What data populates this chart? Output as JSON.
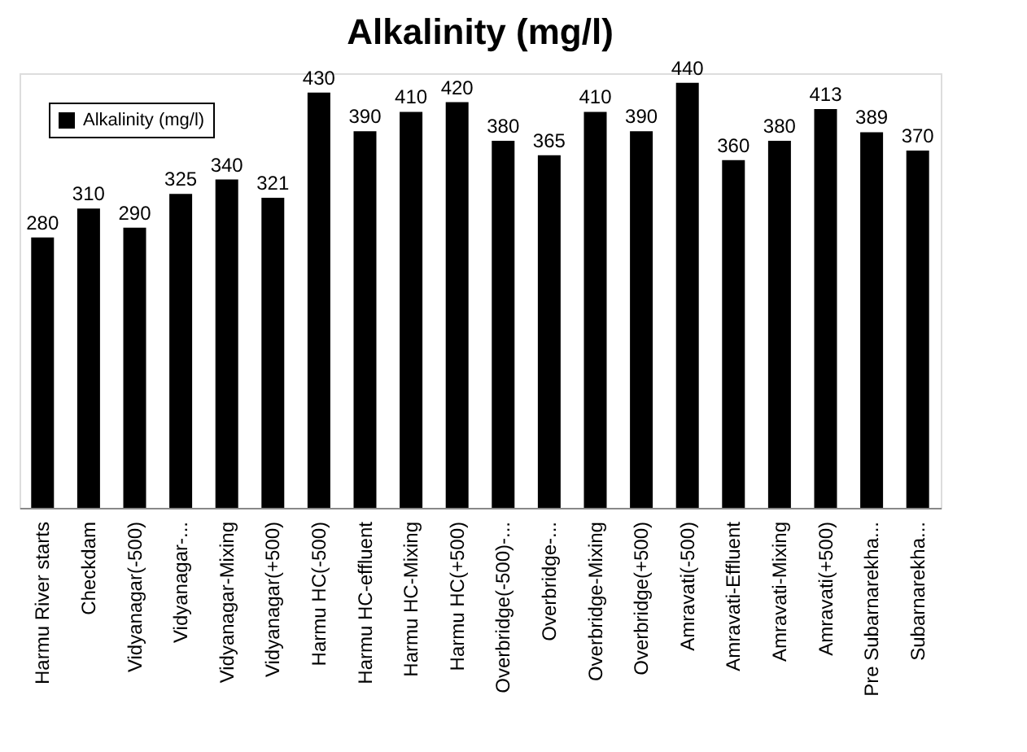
{
  "chart_data": {
    "type": "bar",
    "title": "Alkalinity (mg/l)",
    "categories": [
      "Harmu River starts",
      "Checkdam",
      "Vidyanagar(-500)",
      "Vidyanagar-...",
      "Vidyanagar-Mixing",
      "Vidyanagar(+500)",
      "Harmu HC(-500)",
      "Harmu HC-effluent",
      "Harmu HC-Mixing",
      "Harmu HC(+500)",
      "Overbridge(-500)-...",
      "Overbridge-...",
      "Overbridge-Mixing",
      "Overbridge(+500)",
      "Amravati(-500)",
      "Amravati-Effluent",
      "Amravati-Mixing",
      "Amravati(+500)",
      "Pre Subarnarekha...",
      "Subarnarekha..."
    ],
    "series": [
      {
        "name": "Alkalinity (mg/l)",
        "color": "#000000",
        "values": [
          280,
          310,
          290,
          325,
          340,
          321,
          430,
          390,
          410,
          420,
          380,
          365,
          410,
          390,
          440,
          360,
          380,
          413,
          389,
          370
        ]
      }
    ],
    "data_labels": true,
    "legend": "top left",
    "grid": false
  }
}
